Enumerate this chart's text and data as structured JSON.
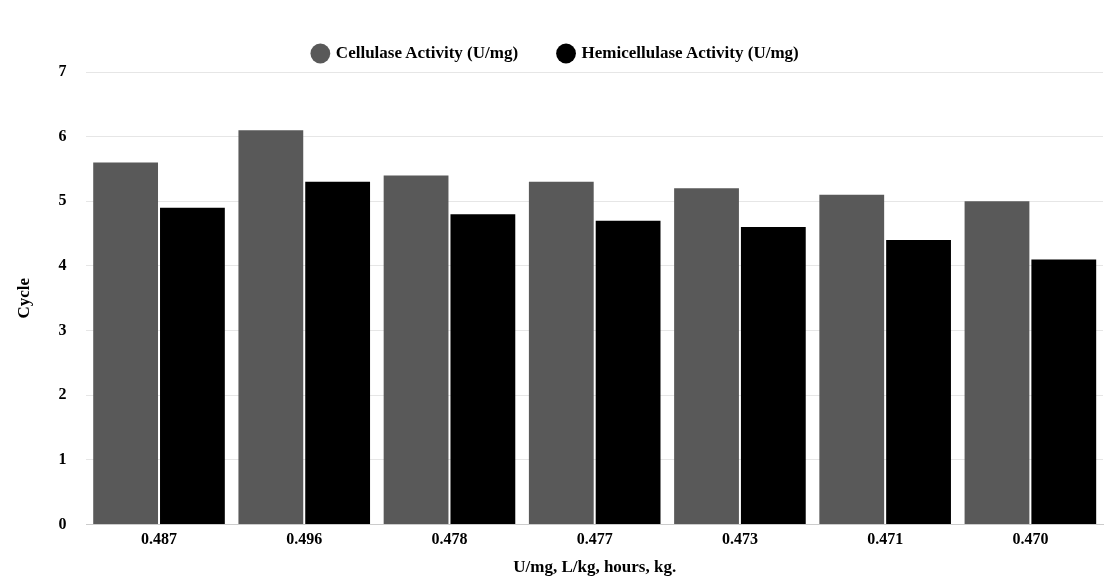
{
  "chart_data": {
    "type": "bar",
    "xlabel": "U/mg, L/kg, hours, kg.",
    "ylabel": "Cycle",
    "categories": [
      "0.487",
      "0.496",
      "0.478",
      "0.477",
      "0.473",
      "0.471",
      "0.470"
    ],
    "series": [
      {
        "name": "Cellulase Activity (U/mg)",
        "color": "#595959",
        "values": [
          5.6,
          6.1,
          5.4,
          5.3,
          5.2,
          5.1,
          5.0
        ]
      },
      {
        "name": "Hemicellulase Activity (U/mg)",
        "color": "#000000",
        "values": [
          4.9,
          5.3,
          4.8,
          4.7,
          4.6,
          4.4,
          4.1
        ]
      }
    ],
    "ylim": [
      0,
      7
    ],
    "yticks": [
      0,
      1,
      2,
      3,
      4,
      5,
      6,
      7
    ],
    "grid": "y",
    "legend": "top"
  }
}
